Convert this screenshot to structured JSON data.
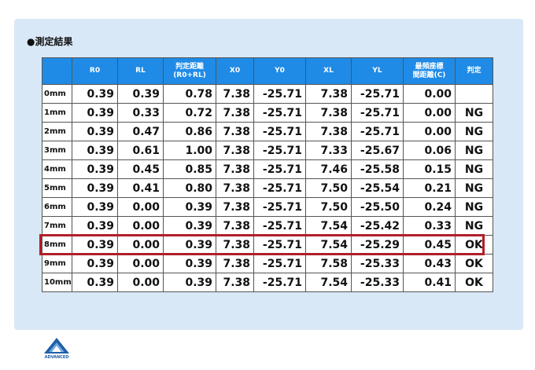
{
  "title": "●測定結果",
  "columns": {
    "c0": "",
    "c1": "R0",
    "c2": "RL",
    "c3a": "判定距離",
    "c3b": "(R0+RL)",
    "c4": "X0",
    "c5": "Y0",
    "c6": "XL",
    "c7": "YL",
    "c8a": "最頻座標",
    "c8b": "間距離(C)",
    "c9": "判定"
  },
  "rows": [
    {
      "label": "0mm",
      "r0": "0.39",
      "rl": "0.39",
      "d": "0.78",
      "x0": "7.38",
      "y0": "-25.71",
      "xl": "7.38",
      "yl": "-25.71",
      "c": "0.00",
      "j": ""
    },
    {
      "label": "1mm",
      "r0": "0.39",
      "rl": "0.33",
      "d": "0.72",
      "x0": "7.38",
      "y0": "-25.71",
      "xl": "7.38",
      "yl": "-25.71",
      "c": "0.00",
      "j": "NG"
    },
    {
      "label": "2mm",
      "r0": "0.39",
      "rl": "0.47",
      "d": "0.86",
      "x0": "7.38",
      "y0": "-25.71",
      "xl": "7.38",
      "yl": "-25.71",
      "c": "0.00",
      "j": "NG"
    },
    {
      "label": "3mm",
      "r0": "0.39",
      "rl": "0.61",
      "d": "1.00",
      "x0": "7.38",
      "y0": "-25.71",
      "xl": "7.33",
      "yl": "-25.67",
      "c": "0.06",
      "j": "NG"
    },
    {
      "label": "4mm",
      "r0": "0.39",
      "rl": "0.45",
      "d": "0.85",
      "x0": "7.38",
      "y0": "-25.71",
      "xl": "7.46",
      "yl": "-25.58",
      "c": "0.15",
      "j": "NG"
    },
    {
      "label": "5mm",
      "r0": "0.39",
      "rl": "0.41",
      "d": "0.80",
      "x0": "7.38",
      "y0": "-25.71",
      "xl": "7.50",
      "yl": "-25.54",
      "c": "0.21",
      "j": "NG"
    },
    {
      "label": "6mm",
      "r0": "0.39",
      "rl": "0.00",
      "d": "0.39",
      "x0": "7.38",
      "y0": "-25.71",
      "xl": "7.50",
      "yl": "-25.50",
      "c": "0.24",
      "j": "NG"
    },
    {
      "label": "7mm",
      "r0": "0.39",
      "rl": "0.00",
      "d": "0.39",
      "x0": "7.38",
      "y0": "-25.71",
      "xl": "7.54",
      "yl": "-25.42",
      "c": "0.33",
      "j": "NG"
    },
    {
      "label": "8mm",
      "r0": "0.39",
      "rl": "0.00",
      "d": "0.39",
      "x0": "7.38",
      "y0": "-25.71",
      "xl": "7.54",
      "yl": "-25.29",
      "c": "0.45",
      "j": "OK"
    },
    {
      "label": "9mm",
      "r0": "0.39",
      "rl": "0.00",
      "d": "0.39",
      "x0": "7.38",
      "y0": "-25.71",
      "xl": "7.58",
      "yl": "-25.33",
      "c": "0.43",
      "j": "OK"
    },
    {
      "label": "10mm",
      "r0": "0.39",
      "rl": "0.00",
      "d": "0.39",
      "x0": "7.38",
      "y0": "-25.71",
      "xl": "7.54",
      "yl": "-25.33",
      "c": "0.41",
      "j": "OK"
    }
  ],
  "highlight_row": "8mm",
  "logo": {
    "name": "advanced-logo",
    "text": "ADVANCED"
  },
  "colors": {
    "header": "#1f8be6",
    "ng": "#c0282d",
    "ok": "#1f6fb3",
    "highlight": "#b21e28",
    "panel": "#d9e8f7"
  }
}
